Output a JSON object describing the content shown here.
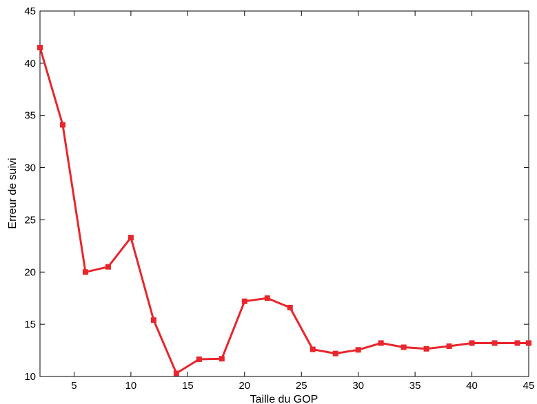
{
  "chart_data": {
    "type": "line",
    "title": "",
    "xlabel": "Taille du GOP",
    "ylabel": "Erreur de suivi",
    "xlim": [
      2,
      45
    ],
    "ylim": [
      10,
      45
    ],
    "xticks": [
      5,
      10,
      15,
      20,
      25,
      30,
      35,
      40,
      45
    ],
    "yticks": [
      10,
      15,
      20,
      25,
      30,
      35,
      40,
      45
    ],
    "grid": false,
    "line_color": "#e8262c",
    "marker": "square",
    "series": [
      {
        "x": [
          2,
          4,
          6,
          8,
          10,
          12,
          14,
          16,
          18,
          20,
          22,
          24,
          26,
          28,
          30,
          32,
          34,
          36,
          38,
          40,
          42,
          44,
          45
        ],
        "values": [
          41.5,
          34.1,
          20.0,
          20.5,
          23.3,
          15.4,
          10.3,
          11.65,
          11.7,
          17.2,
          17.5,
          16.6,
          12.6,
          12.2,
          12.55,
          13.2,
          12.8,
          12.65,
          12.9,
          13.2,
          13.2,
          13.2,
          13.2
        ]
      }
    ]
  }
}
